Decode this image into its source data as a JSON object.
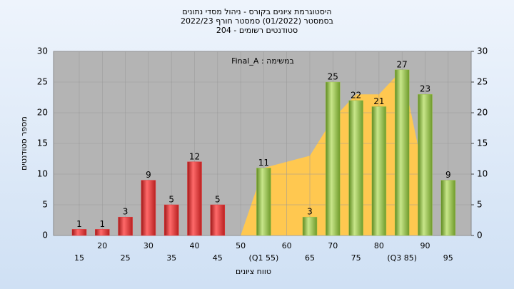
{
  "chart_data": {
    "type": "bar",
    "title": "היסטוגרמת ציונים בקורס - ניהול מסדי נתונים",
    "subtitle": [
      "בסמסטר  (01/2022)  סמסטר חורף 2022/23",
      "סטודנטים רשומים - 204"
    ],
    "annotation": "Final_A : במשימה",
    "y_label": "מספר סטודנטים",
    "x_label": "טווח ציונים",
    "categories": [
      "15",
      "20",
      "25",
      "30",
      "35",
      "40",
      "45",
      "50",
      "(Q1 55)",
      "60",
      "65",
      "70",
      "75",
      "80",
      "(Q3 85)",
      "90",
      "95"
    ],
    "series": [
      {
        "color": "#e8383a",
        "values": [
          1,
          1,
          3,
          9,
          5,
          12,
          5,
          null,
          null,
          null,
          null,
          null,
          null,
          null,
          null,
          null,
          null
        ]
      },
      {
        "color": "#9dc24a",
        "values": [
          null,
          null,
          null,
          null,
          null,
          null,
          null,
          null,
          11,
          null,
          3,
          25,
          22,
          21,
          27,
          23,
          9
        ]
      }
    ],
    "area": {
      "color": "#ffc850",
      "values": [
        null,
        null,
        null,
        null,
        null,
        null,
        null,
        0,
        11,
        12,
        13,
        19,
        23,
        23,
        27,
        9,
        null
      ]
    },
    "ylim": [
      0,
      30
    ],
    "yticks": [
      0,
      5,
      10,
      15,
      20,
      25,
      30
    ],
    "y2lim": [
      0,
      30
    ],
    "y2ticks": [
      0,
      5,
      10,
      15,
      20,
      25,
      30
    ],
    "grid": true
  }
}
